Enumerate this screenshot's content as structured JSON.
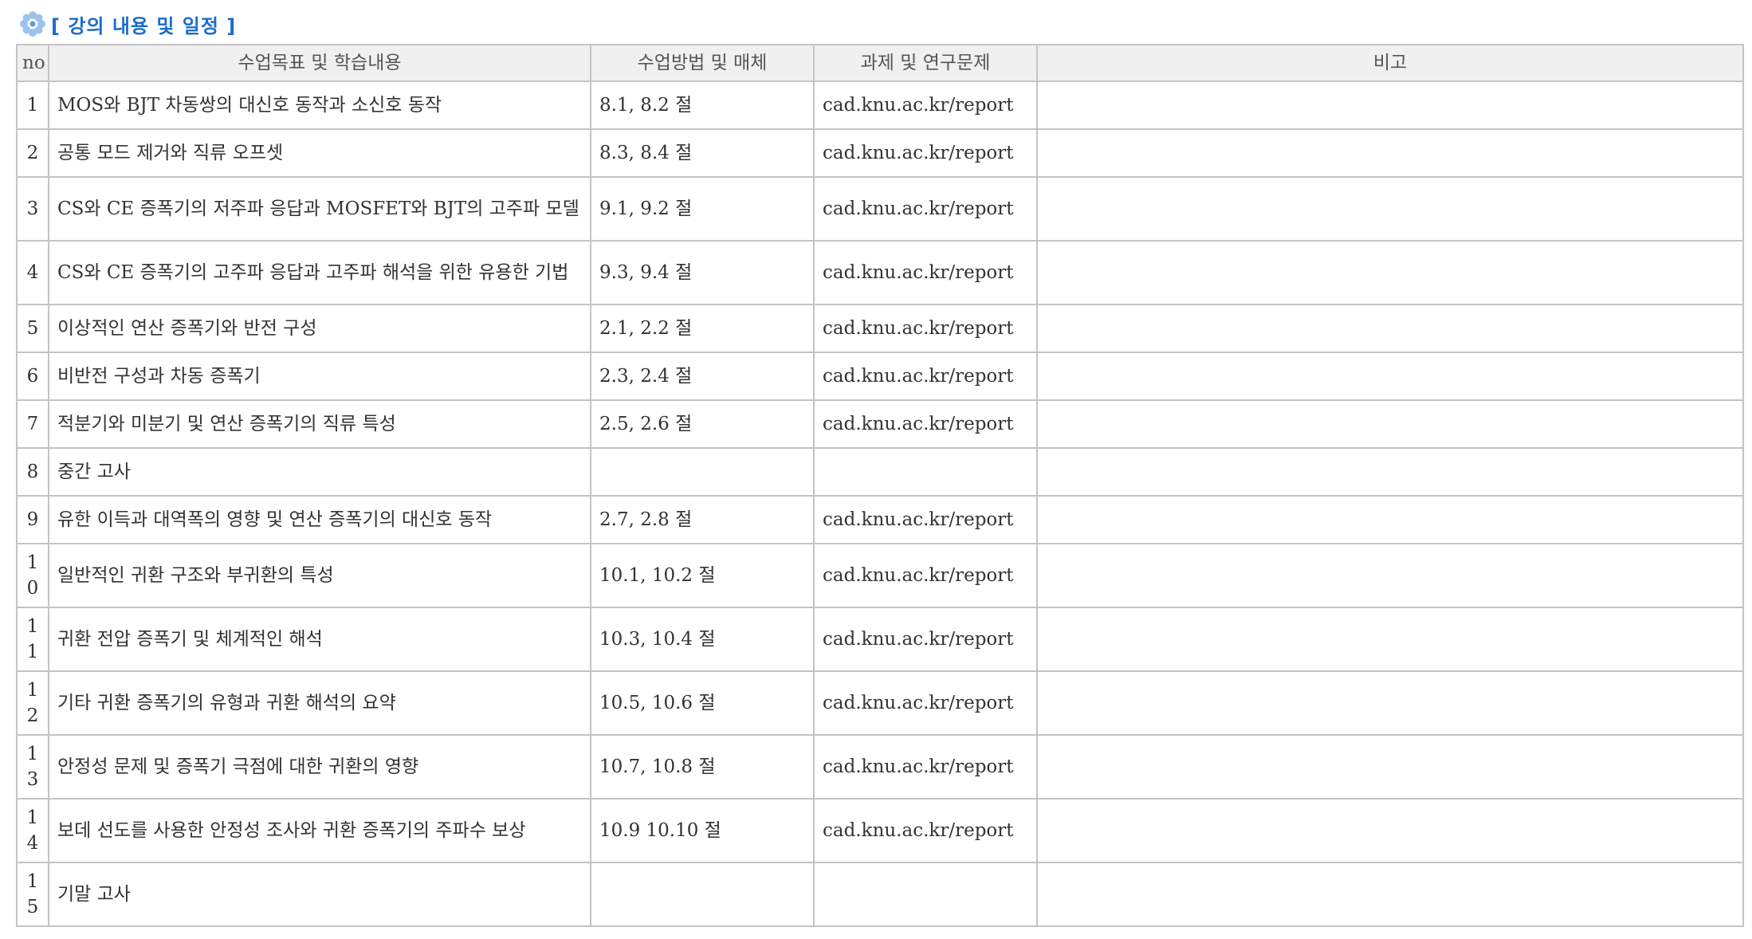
{
  "section": {
    "title": "[ 강의 내용 및 일정 ]",
    "icon": "flower-icon",
    "accent_color": "#1a6ccb"
  },
  "table": {
    "headers": {
      "no": "no",
      "goal": "수업목표 및 학습내용",
      "method": "수업방법 및 매체",
      "task": "과제 및 연구문제",
      "note": "비고"
    },
    "rows": [
      {
        "no": "1",
        "goal": "MOS와 BJT 차동쌍의 대신호 동작과 소신호 동작",
        "method": "8.1, 8.2 절",
        "task": "cad.knu.ac.kr/report",
        "note": ""
      },
      {
        "no": "2",
        "goal": "공통 모드 제거와 직류 오프셋",
        "method": "8.3, 8.4 절",
        "task": "cad.knu.ac.kr/report",
        "note": ""
      },
      {
        "no": "3",
        "goal": "CS와 CE 증폭기의 저주파 응답과 MOSFET와 BJT의 고주파 모델",
        "method": "9.1, 9.2 절",
        "task": "cad.knu.ac.kr/report",
        "note": ""
      },
      {
        "no": "4",
        "goal": "CS와 CE 증폭기의 고주파 응답과 고주파 해석을 위한 유용한 기법",
        "method": "9.3, 9.4 절",
        "task": "cad.knu.ac.kr/report",
        "note": ""
      },
      {
        "no": "5",
        "goal": "이상적인 연산 증폭기와 반전 구성",
        "method": "2.1, 2.2 절",
        "task": "cad.knu.ac.kr/report",
        "note": ""
      },
      {
        "no": "6",
        "goal": "비반전 구성과 차동 증폭기",
        "method": "2.3, 2.4 절",
        "task": "cad.knu.ac.kr/report",
        "note": ""
      },
      {
        "no": "7",
        "goal": "적분기와 미분기 및 연산 증폭기의 직류 특성",
        "method": "2.5, 2.6 절",
        "task": "cad.knu.ac.kr/report",
        "note": ""
      },
      {
        "no": "8",
        "goal": "중간 고사",
        "method": "",
        "task": "",
        "note": ""
      },
      {
        "no": "9",
        "goal": "유한 이득과 대역폭의 영향 및 연산 증폭기의 대신호 동작",
        "method": "2.7, 2.8 절",
        "task": "cad.knu.ac.kr/report",
        "note": ""
      },
      {
        "no": "10",
        "goal": "일반적인 귀환 구조와 부귀환의 특성",
        "method": "10.1, 10.2 절",
        "task": "cad.knu.ac.kr/report",
        "note": ""
      },
      {
        "no": "11",
        "goal": "귀환 전압 증폭기 및 체계적인 해석",
        "method": "10.3, 10.4 절",
        "task": "cad.knu.ac.kr/report",
        "note": ""
      },
      {
        "no": "12",
        "goal": "기타 귀환 증폭기의 유형과 귀환 해석의 요약",
        "method": "10.5, 10.6 절",
        "task": "cad.knu.ac.kr/report",
        "note": ""
      },
      {
        "no": "13",
        "goal": "안정성 문제 및 증폭기 극점에 대한 귀환의 영향",
        "method": "10.7, 10.8 절",
        "task": "cad.knu.ac.kr/report",
        "note": ""
      },
      {
        "no": "14",
        "goal": "보데 선도를 사용한 안정성 조사와 귀환 증폭기의 주파수 보상",
        "method": "10.9 10.10 절",
        "task": "cad.knu.ac.kr/report",
        "note": ""
      },
      {
        "no": "15",
        "goal": "기말 고사",
        "method": "",
        "task": "",
        "note": ""
      }
    ]
  }
}
